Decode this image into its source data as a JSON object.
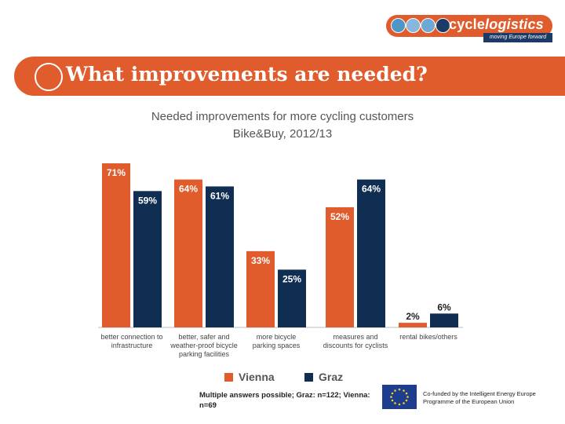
{
  "header": {
    "brand_part1": "cycle",
    "brand_part2": "logistics",
    "tagline": "moving Europe forward",
    "slide_title": "What improvements are needed?"
  },
  "colors": {
    "brand_orange": "#e05c2c",
    "navy": "#1c3a66",
    "vienna": "#e05c2c",
    "graz": "#0f2e52"
  },
  "chart_data": {
    "type": "bar",
    "title": "Needed improvements for more cycling customers",
    "subtitle": "Bike&Buy, 2012/13",
    "categories": [
      [
        "better connection to",
        "infrastructure"
      ],
      [
        "better, safer and",
        "weather-proof bicycle",
        "parking facilities"
      ],
      [
        "more bicycle",
        "parking spaces"
      ],
      [
        "measures and",
        "discounts for cyclists"
      ],
      [
        "rental bikes/others"
      ]
    ],
    "series": [
      {
        "name": "Vienna",
        "color": "#e05c2c",
        "values": [
          71,
          64,
          33,
          52,
          2
        ],
        "labels": [
          "71%",
          "64%",
          "33%",
          "52%",
          "2%"
        ]
      },
      {
        "name": "Graz",
        "color": "#0f2e52",
        "values": [
          59,
          61,
          25,
          64,
          6
        ],
        "labels": [
          "59%",
          "61%",
          "25%",
          "64%",
          "6%"
        ]
      }
    ],
    "ylim": [
      0,
      80
    ],
    "grid": false,
    "legend": "bottom"
  },
  "footnote": "Multiple answers possible; Graz: n=122; Vienna: n=69",
  "eu": {
    "line1": "Co-funded by the Intelligent Energy Europe",
    "line2": "Programme of the European Union"
  }
}
